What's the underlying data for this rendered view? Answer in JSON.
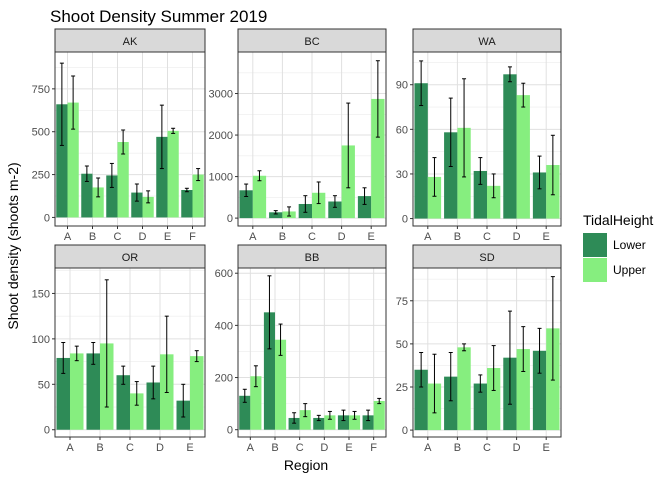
{
  "chart_data": {
    "type": "bar",
    "title": "Shoot Density Summer 2019",
    "xlabel": "Region",
    "ylabel": "Shoot density (shoots m-2)",
    "grid": true,
    "legend": {
      "title": "TidalHeight",
      "position": "right",
      "entries": [
        "Lower",
        "Upper"
      ]
    },
    "colors": {
      "Lower": "#2e8b57",
      "Upper": "#86ee7f"
    },
    "panels": [
      {
        "name": "AK",
        "categories": [
          "A",
          "B",
          "C",
          "D",
          "E",
          "F"
        ],
        "ylim": [
          -50,
          965
        ],
        "yticks": [
          0,
          250,
          500,
          750
        ],
        "series": [
          {
            "name": "Lower",
            "values": [
              660,
              255,
              245,
              145,
              470,
              160
            ],
            "err": [
              240,
              45,
              70,
              50,
              185,
              10
            ]
          },
          {
            "name": "Upper",
            "values": [
              670,
              175,
              440,
              120,
              505,
              250
            ],
            "err": [
              155,
              55,
              70,
              35,
              15,
              35
            ]
          }
        ]
      },
      {
        "name": "BC",
        "categories": [
          "A",
          "B",
          "C",
          "D",
          "E"
        ],
        "ylim": [
          -190,
          4000
        ],
        "yticks": [
          0,
          1000,
          2000,
          3000
        ],
        "series": [
          {
            "name": "Lower",
            "values": [
              670,
              140,
              340,
              400,
              530
            ],
            "err": [
              150,
              40,
              200,
              140,
              200
            ]
          },
          {
            "name": "Upper",
            "values": [
              1020,
              160,
              610,
              1750,
              2870
            ],
            "err": [
              120,
              110,
              260,
              1020,
              920
            ]
          }
        ]
      },
      {
        "name": "WA",
        "categories": [
          "A",
          "B",
          "C",
          "D",
          "E"
        ],
        "ylim": [
          -5,
          112
        ],
        "yticks": [
          0,
          30,
          60,
          90
        ],
        "series": [
          {
            "name": "Lower",
            "values": [
              91,
              58,
              32,
              97,
              31
            ],
            "err": [
              15,
              23,
              9,
              5,
              11
            ]
          },
          {
            "name": "Upper",
            "values": [
              28,
              61,
              22,
              83,
              36
            ],
            "err": [
              13,
              33,
              8,
              8,
              20
            ]
          }
        ]
      },
      {
        "name": "OR",
        "categories": [
          "A",
          "B",
          "C",
          "D",
          "E"
        ],
        "ylim": [
          -8,
          178
        ],
        "yticks": [
          0,
          50,
          100,
          150
        ],
        "series": [
          {
            "name": "Lower",
            "values": [
              79,
              84,
              60,
              52,
              32
            ],
            "err": [
              17,
              12,
              10,
              18,
              18
            ]
          },
          {
            "name": "Upper",
            "values": [
              84,
              95,
              40,
              83,
              81
            ],
            "err": [
              8,
              70,
              13,
              42,
              6
            ]
          }
        ]
      },
      {
        "name": "BB",
        "categories": [
          "A",
          "B",
          "C",
          "D",
          "E",
          "F"
        ],
        "ylim": [
          -28,
          620
        ],
        "yticks": [
          0,
          200,
          400,
          600
        ],
        "series": [
          {
            "name": "Lower",
            "values": [
              130,
              450,
              45,
              45,
              55,
              55
            ],
            "err": [
              25,
              140,
              20,
              10,
              20,
              20
            ]
          },
          {
            "name": "Upper",
            "values": [
              205,
              345,
              75,
              55,
              55,
              110
            ],
            "err": [
              40,
              60,
              25,
              15,
              15,
              10
            ]
          }
        ]
      },
      {
        "name": "SD",
        "categories": [
          "A",
          "B",
          "C",
          "D",
          "E"
        ],
        "ylim": [
          -4,
          94
        ],
        "yticks": [
          0,
          25,
          50,
          75
        ],
        "series": [
          {
            "name": "Lower",
            "values": [
              35,
              31,
              27,
              42,
              46
            ],
            "err": [
              10,
              14,
              5,
              27,
              13
            ]
          },
          {
            "name": "Upper",
            "values": [
              27,
              48,
              36,
              47,
              59
            ],
            "err": [
              17,
              2,
              13,
              13,
              30
            ]
          }
        ]
      }
    ]
  }
}
